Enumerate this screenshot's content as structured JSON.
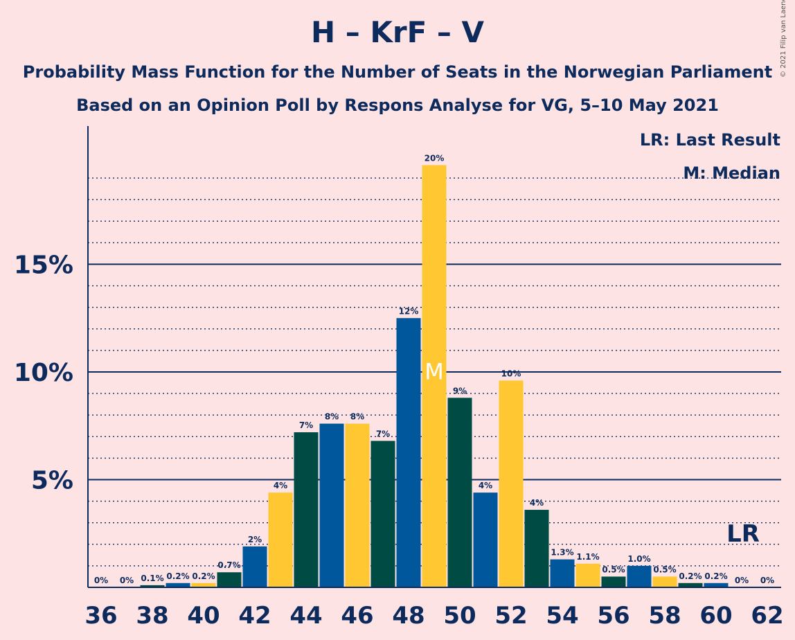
{
  "title": "H – KrF – V",
  "subtitle_1": "Probability Mass Function for the Number of Seats in the Norwegian Parliament",
  "subtitle_2": "Based on an Opinion Poll by Respons Analyse for VG, 5–10 May 2021",
  "copyright": "© 2021 Filip van Laenen",
  "legend": {
    "lr": "LR: Last Result",
    "m": "M: Median"
  },
  "colors": {
    "blue": "#00579b",
    "yellow": "#ffc832",
    "green": "#004c45",
    "text": "#0d2a5c",
    "background": "#fde3e3"
  },
  "chart_data": {
    "type": "bar",
    "xlim": [
      36,
      62
    ],
    "ylim": [
      0,
      21
    ],
    "y_ticks": [
      {
        "value": 5,
        "label": "5%"
      },
      {
        "value": 10,
        "label": "10%"
      },
      {
        "value": 15,
        "label": "15%"
      }
    ],
    "x_ticks": [
      36,
      38,
      40,
      42,
      44,
      46,
      48,
      50,
      52,
      54,
      56,
      58,
      60,
      62
    ],
    "bars": [
      {
        "x": 36,
        "value": 0,
        "label": "0%",
        "color": "blue"
      },
      {
        "x": 37,
        "value": 0,
        "label": "0%",
        "color": "yellow"
      },
      {
        "x": 38,
        "value": 0.1,
        "label": "0.1%",
        "color": "green"
      },
      {
        "x": 39,
        "value": 0.2,
        "label": "0.2%",
        "color": "blue"
      },
      {
        "x": 40,
        "value": 0.2,
        "label": "0.2%",
        "color": "yellow"
      },
      {
        "x": 41,
        "value": 0.7,
        "label": "0.7%",
        "color": "green"
      },
      {
        "x": 42,
        "value": 1.9,
        "label": "2%",
        "color": "blue"
      },
      {
        "x": 43,
        "value": 4.4,
        "label": "4%",
        "color": "yellow"
      },
      {
        "x": 44,
        "value": 7.2,
        "label": "7%",
        "color": "green"
      },
      {
        "x": 45,
        "value": 7.6,
        "label": "8%",
        "color": "blue"
      },
      {
        "x": 46,
        "value": 7.6,
        "label": "8%",
        "color": "yellow"
      },
      {
        "x": 47,
        "value": 6.8,
        "label": "7%",
        "color": "green"
      },
      {
        "x": 48,
        "value": 12.5,
        "label": "12%",
        "color": "blue"
      },
      {
        "x": 49,
        "value": 19.6,
        "label": "20%",
        "color": "yellow",
        "median": true
      },
      {
        "x": 50,
        "value": 8.8,
        "label": "9%",
        "color": "green"
      },
      {
        "x": 51,
        "value": 4.4,
        "label": "4%",
        "color": "blue"
      },
      {
        "x": 52,
        "value": 9.6,
        "label": "10%",
        "color": "yellow"
      },
      {
        "x": 53,
        "value": 3.6,
        "label": "4%",
        "color": "green"
      },
      {
        "x": 54,
        "value": 1.3,
        "label": "1.3%",
        "color": "blue"
      },
      {
        "x": 55,
        "value": 1.1,
        "label": "1.1%",
        "color": "yellow"
      },
      {
        "x": 56,
        "value": 0.5,
        "label": "0.5%",
        "color": "green"
      },
      {
        "x": 57,
        "value": 1.0,
        "label": "1.0%",
        "color": "blue"
      },
      {
        "x": 58,
        "value": 0.5,
        "label": "0.5%",
        "color": "yellow"
      },
      {
        "x": 59,
        "value": 0.2,
        "label": "0.2%",
        "color": "green"
      },
      {
        "x": 60,
        "value": 0.2,
        "label": "0.2%",
        "color": "blue"
      },
      {
        "x": 61,
        "value": 0,
        "label": "0%",
        "color": "yellow"
      },
      {
        "x": 62,
        "value": 0,
        "label": "0%",
        "color": "green"
      }
    ],
    "median_marker": "M",
    "last_result_marker": "LR",
    "last_result_x": 61
  }
}
